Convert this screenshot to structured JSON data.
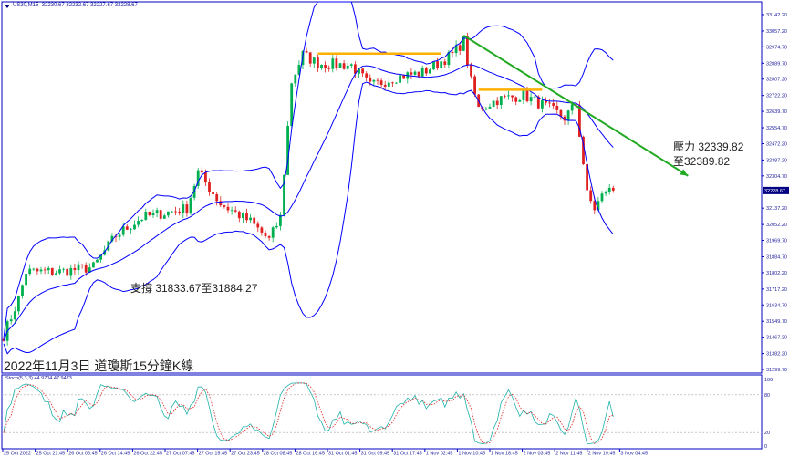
{
  "header": {
    "symbol": "US30,M15",
    "ohlc": "32230.67 32232.67 32227.67 32228.67"
  },
  "title": "2022年11月3日 道瓊斯15分鐘K線",
  "annotations": {
    "resistance_line1": "壓力 32339.82",
    "resistance_line2": "至32389.82",
    "support": "支撐 31833.67至31884.27"
  },
  "colors": {
    "axis": "#0000c0",
    "bull": "#00b050",
    "bear": "#e02020",
    "bands": "#0000ff",
    "trend_arrow": "#22aa22",
    "level_lines": "#ffb000",
    "price_tag": "#000080"
  },
  "chart_data": {
    "type": "candlestick",
    "symbol": "US30",
    "timeframe": "M15",
    "indicators": [
      "Bollinger Bands",
      "Stochastic(5,3,3)"
    ],
    "y_ticks": [
      "33142.20",
      "33057.20",
      "32974.70",
      "32889.70",
      "32807.20",
      "32722.20",
      "32639.70",
      "32554.70",
      "32472.20",
      "32387.20",
      "32304.70",
      "32137.20",
      "32052.20",
      "31969.70",
      "31884.70",
      "31802.20",
      "31717.20",
      "31634.70",
      "31549.70",
      "31467.20",
      "31382.20",
      "31299.70"
    ],
    "ylim": [
      31299.7,
      33142.2
    ],
    "current_price": "32228.67",
    "x_ticks": [
      "25 Oct 2022",
      "25 Oct 21:45",
      "26 Oct 06:45",
      "26 Oct 14:45",
      "26 Oct 22:45",
      "27 Oct 07:45",
      "27 Oct 15:45",
      "27 Oct 23:45",
      "28 Oct 08:45",
      "28 Oct 16:45",
      "31 Oct 01:45",
      "31 Oct 09:45",
      "31 Oct 17:45",
      "1 Nov 02:45",
      "1 Nov 10:45",
      "1 Nov 18:45",
      "2 Nov 03:45",
      "2 Nov 11:45",
      "2 Nov 19:45",
      "3 Nov 04:45"
    ],
    "close_path": [
      {
        "bar": 0,
        "price": 31478
      },
      {
        "bar": 4,
        "price": 31666
      },
      {
        "bar": 6,
        "price": 31807
      },
      {
        "bar": 15,
        "price": 31807
      },
      {
        "bar": 24,
        "price": 31831
      },
      {
        "bar": 30,
        "price": 31995
      },
      {
        "bar": 37,
        "price": 32089
      },
      {
        "bar": 49,
        "price": 32136
      },
      {
        "bar": 52,
        "price": 32324
      },
      {
        "bar": 58,
        "price": 32160
      },
      {
        "bar": 66,
        "price": 32066
      },
      {
        "bar": 71,
        "price": 31972
      },
      {
        "bar": 74,
        "price": 32089
      },
      {
        "bar": 77,
        "price": 32794
      },
      {
        "bar": 80,
        "price": 32935
      },
      {
        "bar": 84,
        "price": 32888
      },
      {
        "bar": 93,
        "price": 32879
      },
      {
        "bar": 98,
        "price": 32771
      },
      {
        "bar": 105,
        "price": 32818
      },
      {
        "bar": 112,
        "price": 32841
      },
      {
        "bar": 120,
        "price": 32935
      },
      {
        "bar": 123,
        "price": 33006
      },
      {
        "bar": 125,
        "price": 32794
      },
      {
        "bar": 127,
        "price": 32653
      },
      {
        "bar": 132,
        "price": 32700
      },
      {
        "bar": 139,
        "price": 32724
      },
      {
        "bar": 146,
        "price": 32653
      },
      {
        "bar": 150,
        "price": 32606
      },
      {
        "bar": 153,
        "price": 32677
      },
      {
        "bar": 155,
        "price": 32371
      },
      {
        "bar": 156,
        "price": 32207
      },
      {
        "bar": 158,
        "price": 32136
      },
      {
        "bar": 161,
        "price": 32230
      },
      {
        "bar": 163,
        "price": 32228.67
      }
    ],
    "levels": [
      {
        "price": 32940,
        "from_bar": 84,
        "to_bar": 117
      },
      {
        "price": 32752,
        "from_bar": 127,
        "to_bar": 144
      }
    ],
    "trendline": {
      "from": {
        "bar": 123,
        "price": 33034
      },
      "to": {
        "bar": 183,
        "price": 32305
      }
    },
    "stochastic": {
      "label": "Stoch(5,3,3) 44.9704 47.9473",
      "main": 44.9704,
      "signal": 47.9473,
      "levels": [
        100,
        80,
        20,
        0
      ],
      "level_labels": [
        "100",
        "80",
        "20",
        "0"
      ]
    }
  }
}
